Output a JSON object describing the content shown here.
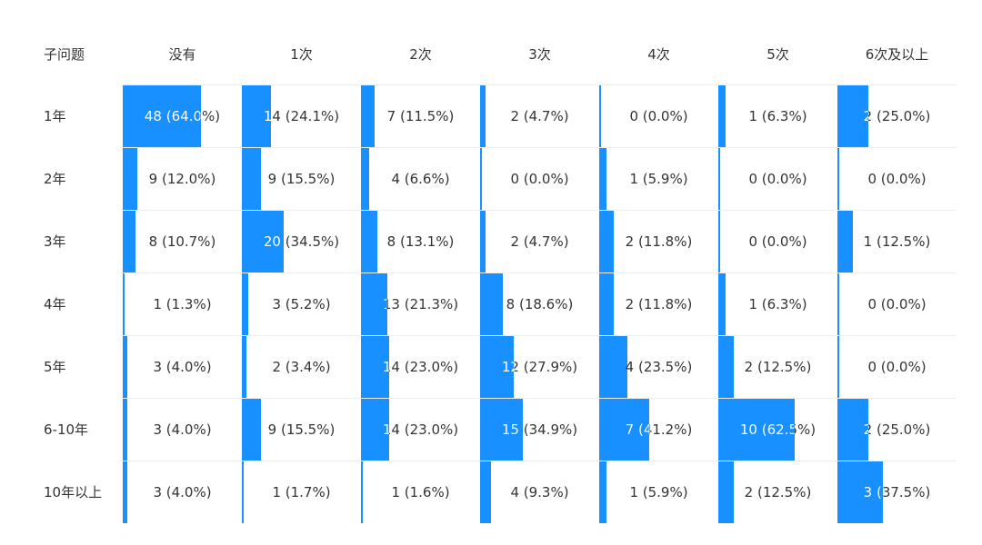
{
  "chart_data": {
    "type": "table",
    "corner_label": "子问题",
    "columns": [
      "没有",
      "1次",
      "2次",
      "3次",
      "4次",
      "5次",
      "6次及以上"
    ],
    "rows": [
      {
        "label": "1年",
        "values": [
          "48 (64.0%)",
          "14 (24.1%)",
          "7 (11.5%)",
          "2 (4.7%)",
          "0 (0.0%)",
          "1 (6.3%)",
          "2 (25.0%)"
        ],
        "pct": [
          64.0,
          24.1,
          11.5,
          4.7,
          0.0,
          6.3,
          25.0
        ]
      },
      {
        "label": "2年",
        "values": [
          "9 (12.0%)",
          "9 (15.5%)",
          "4 (6.6%)",
          "0 (0.0%)",
          "1 (5.9%)",
          "0 (0.0%)",
          "0 (0.0%)"
        ],
        "pct": [
          12.0,
          15.5,
          6.6,
          0.0,
          5.9,
          0.0,
          0.0
        ]
      },
      {
        "label": "3年",
        "values": [
          "8 (10.7%)",
          "20 (34.5%)",
          "8 (13.1%)",
          "2 (4.7%)",
          "2 (11.8%)",
          "0 (0.0%)",
          "1 (12.5%)"
        ],
        "pct": [
          10.7,
          34.5,
          13.1,
          4.7,
          11.8,
          0.0,
          12.5
        ]
      },
      {
        "label": "4年",
        "values": [
          "1 (1.3%)",
          "3 (5.2%)",
          "13 (21.3%)",
          "8 (18.6%)",
          "2 (11.8%)",
          "1 (6.3%)",
          "0 (0.0%)"
        ],
        "pct": [
          1.3,
          5.2,
          21.3,
          18.6,
          11.8,
          6.3,
          0.0
        ]
      },
      {
        "label": "5年",
        "values": [
          "3 (4.0%)",
          "2 (3.4%)",
          "14 (23.0%)",
          "12 (27.9%)",
          "4 (23.5%)",
          "2 (12.5%)",
          "0 (0.0%)"
        ],
        "pct": [
          4.0,
          3.4,
          23.0,
          27.9,
          23.5,
          12.5,
          0.0
        ]
      },
      {
        "label": "6-10年",
        "values": [
          "3 (4.0%)",
          "9 (15.5%)",
          "14 (23.0%)",
          "15 (34.9%)",
          "7 (41.2%)",
          "10 (62.5%)",
          "2 (25.0%)"
        ],
        "pct": [
          4.0,
          15.5,
          23.0,
          34.9,
          41.2,
          62.5,
          25.0
        ]
      },
      {
        "label": "10年以上",
        "values": [
          "3 (4.0%)",
          "1 (1.7%)",
          "1 (1.6%)",
          "4 (9.3%)",
          "1 (5.9%)",
          "2 (12.5%)",
          "3 (37.5%)"
        ],
        "pct": [
          4.0,
          1.7,
          1.6,
          9.3,
          5.9,
          12.5,
          37.5
        ]
      }
    ],
    "bar_color": "#1890ff"
  }
}
